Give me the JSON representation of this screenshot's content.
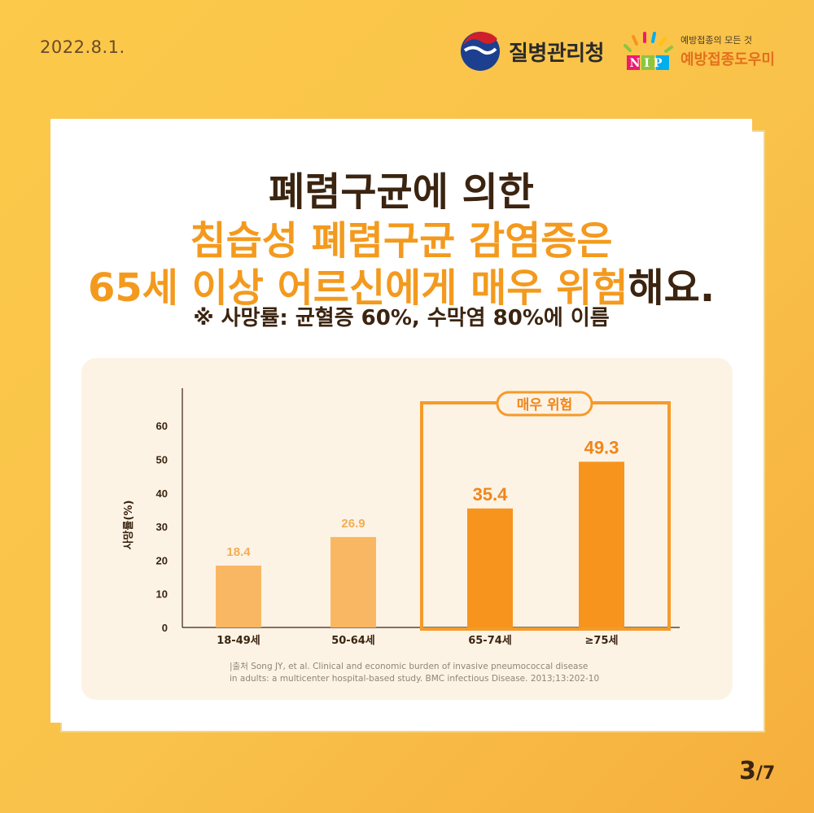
{
  "header": {
    "date": "2022.8.1.",
    "agency_name": "질병관리청",
    "nip_logo_text": "NIP",
    "nip_subtitle": "예방접종의 모든 것",
    "nip_name": "예방접종도우미"
  },
  "headline": {
    "line1": "폐렴구균에 의한",
    "line2": "침습성 폐렴구균 감염증은",
    "line3_highlight": "65세 이상 어르신에게 매우 위험",
    "line3_rest": "해요.",
    "note": "※ 사망률: 균혈증 60%, 수막염 80%에 이름"
  },
  "chart_data": {
    "type": "bar",
    "ylabel": "사망률(%)",
    "xlabel": "",
    "ylim": [
      0,
      60
    ],
    "yticks": [
      0,
      10,
      20,
      30,
      40,
      50,
      60
    ],
    "categories": [
      "18-49세",
      "50-64세",
      "65-74세",
      "≥75세"
    ],
    "values": [
      18.4,
      26.9,
      35.4,
      49.3
    ],
    "data_labels": [
      "18.4",
      "26.9",
      "35.4",
      "49.3"
    ],
    "colors": {
      "low_risk": "#f9b763",
      "high_risk": "#f7941d",
      "low_risk_label": "#f2ad55",
      "high_risk_label": "#f0861a",
      "highlight_box": "#f59a2a"
    },
    "highlight": {
      "label": "매우 위험",
      "categories": [
        "65-74세",
        "≥75세"
      ]
    }
  },
  "source": {
    "line1": "|출처 Song JY, et al. Clinical and economic burden of invasive pneumococcal disease",
    "line2": "in adults: a multicenter hospital-based study. BMC infectious Disease. 2013;13:202-10"
  },
  "pagination": {
    "current": "3",
    "separator": "/",
    "total": "7"
  }
}
